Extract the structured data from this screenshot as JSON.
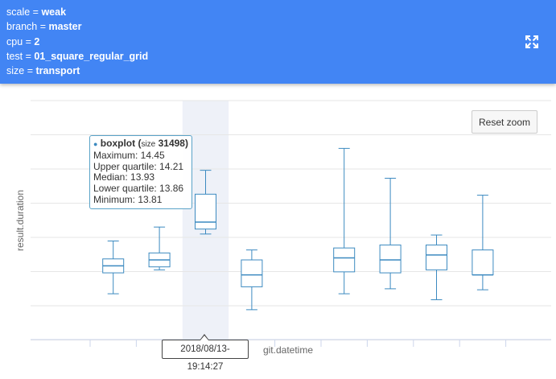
{
  "header": {
    "params": [
      {
        "key": "scale",
        "value": "weak"
      },
      {
        "key": "branch",
        "value": "master"
      },
      {
        "key": "cpu",
        "value": "2"
      },
      {
        "key": "test",
        "value": "01_square_regular_grid"
      },
      {
        "key": "size",
        "value": "transport"
      }
    ],
    "expand_icon": "fullscreen-expand-icon"
  },
  "reset_zoom_label": "Reset zoom",
  "tooltip": {
    "series": "boxplot",
    "size_label": "size",
    "size_value": "31498",
    "rows": [
      "Maximum: 14.45",
      "Upper quartile: 14.21",
      "Median: 13.93",
      "Lower quartile: 13.86",
      "Minimum: 13.81"
    ]
  },
  "x_crosshair_label": "2018/08/13-19:14:27",
  "colors": {
    "header_bg": "#4285f4",
    "box_stroke": "#3c8ac0",
    "grid": "#e6e6e6",
    "highlight_band": "#eef1f8"
  },
  "chart_data": {
    "type": "boxplot",
    "xlabel": "git.datetime",
    "ylabel": "result.duration",
    "y_tick_labels_shown": false,
    "grid": true,
    "highlighted_index": 3,
    "boxes": [
      {
        "index": 1,
        "min": 13.21,
        "q1": 13.42,
        "median": 13.49,
        "q3": 13.56,
        "max": 13.74
      },
      {
        "index": 2,
        "min": 13.45,
        "q1": 13.48,
        "median": 13.55,
        "q3": 13.62,
        "max": 13.88
      },
      {
        "index": 3,
        "min": 13.81,
        "q1": 13.86,
        "median": 13.93,
        "q3": 14.21,
        "max": 14.45
      },
      {
        "index": 4,
        "min": 13.05,
        "q1": 13.28,
        "median": 13.4,
        "q3": 13.55,
        "max": 13.65
      },
      {
        "index": 6,
        "min": 13.21,
        "q1": 13.43,
        "median": 13.57,
        "q3": 13.67,
        "max": 14.67
      },
      {
        "index": 7,
        "min": 13.26,
        "q1": 13.42,
        "median": 13.55,
        "q3": 13.7,
        "max": 14.37
      },
      {
        "index": 8,
        "min": 13.15,
        "q1": 13.45,
        "median": 13.6,
        "q3": 13.7,
        "max": 13.8
      },
      {
        "index": 9,
        "min": 13.25,
        "q1": 13.4,
        "median": 13.4,
        "q3": 13.65,
        "max": 14.2
      }
    ]
  }
}
